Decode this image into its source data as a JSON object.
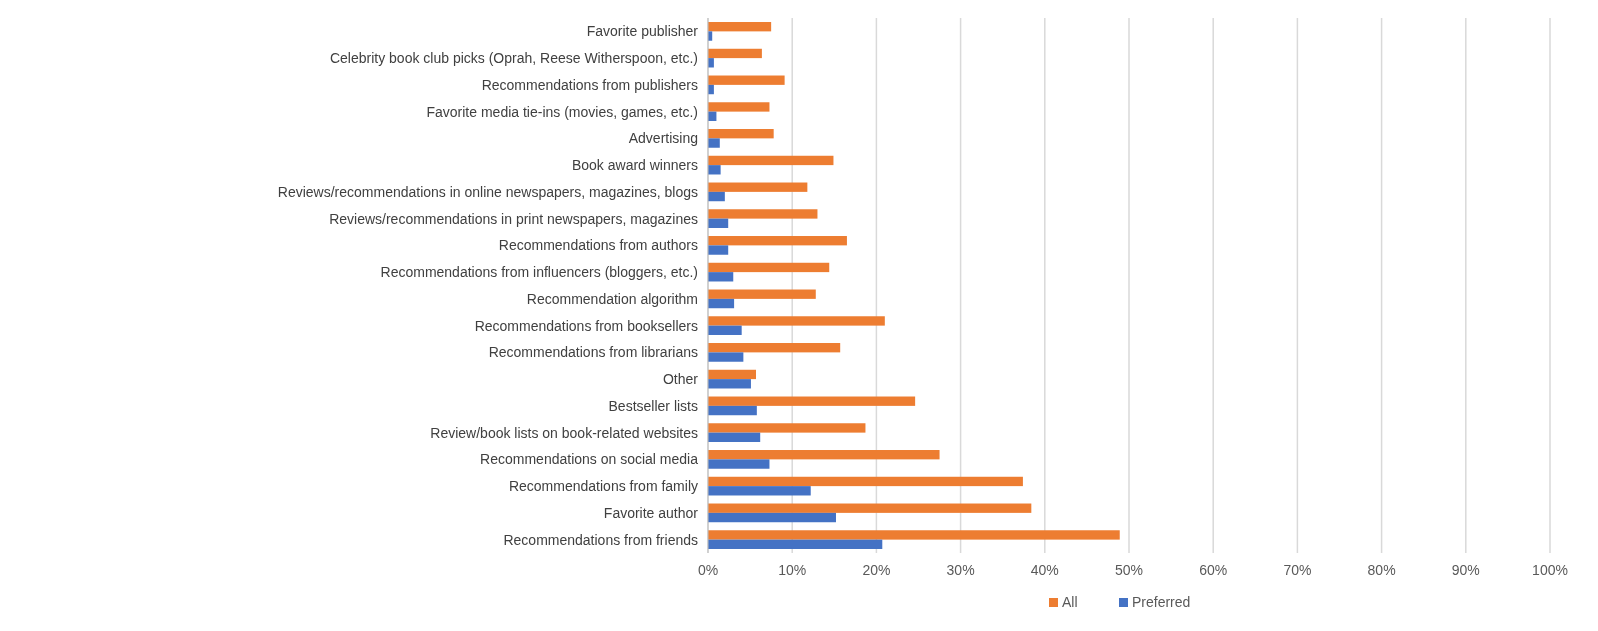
{
  "chart_data": {
    "type": "bar",
    "orientation": "horizontal",
    "categories": [
      "Favorite publisher",
      "Celebrity book club picks (Oprah, Reese Witherspoon, etc.)",
      "Recommendations from publishers",
      "Favorite media tie-ins (movies, games, etc.)",
      "Advertising",
      "Book award winners",
      "Reviews/recommendations in online newspapers, magazines, blogs",
      "Reviews/recommendations in print newspapers, magazines",
      "Recommendations from authors",
      "Recommendations from influencers (bloggers, etc.)",
      "Recommendation algorithm",
      "Recommendations from booksellers",
      "Recommendations from librarians",
      "Other",
      "Bestseller lists",
      "Review/book lists on book-related websites",
      "Recommendations on social media",
      "Recommendations from family",
      "Favorite author",
      "Recommendations from friends"
    ],
    "series": [
      {
        "name": "All",
        "color": "#ed7d31",
        "values": [
          7.5,
          6.4,
          9.1,
          7.3,
          7.8,
          14.9,
          11.8,
          13.0,
          16.5,
          14.4,
          12.8,
          21.0,
          15.7,
          5.7,
          24.6,
          18.7,
          27.5,
          37.4,
          38.4,
          48.9
        ]
      },
      {
        "name": "Preferred",
        "color": "#4472c4",
        "values": [
          0.5,
          0.7,
          0.7,
          1.0,
          1.4,
          1.5,
          2.0,
          2.4,
          2.4,
          3.0,
          3.1,
          4.0,
          4.2,
          5.1,
          5.8,
          6.2,
          7.3,
          12.2,
          15.2,
          20.7
        ]
      }
    ],
    "xlim": [
      0,
      100
    ],
    "xticks": [
      {
        "value": 0,
        "label": "0%"
      },
      {
        "value": 10,
        "label": "10%"
      },
      {
        "value": 20,
        "label": "20%"
      },
      {
        "value": 30,
        "label": "30%"
      },
      {
        "value": 40,
        "label": "40%"
      },
      {
        "value": 50,
        "label": "50%"
      },
      {
        "value": 60,
        "label": "60%"
      },
      {
        "value": 70,
        "label": "70%"
      },
      {
        "value": 80,
        "label": "80%"
      },
      {
        "value": 90,
        "label": "90%"
      },
      {
        "value": 100,
        "label": "100%"
      }
    ],
    "grid": "x",
    "legend": "bottom"
  }
}
